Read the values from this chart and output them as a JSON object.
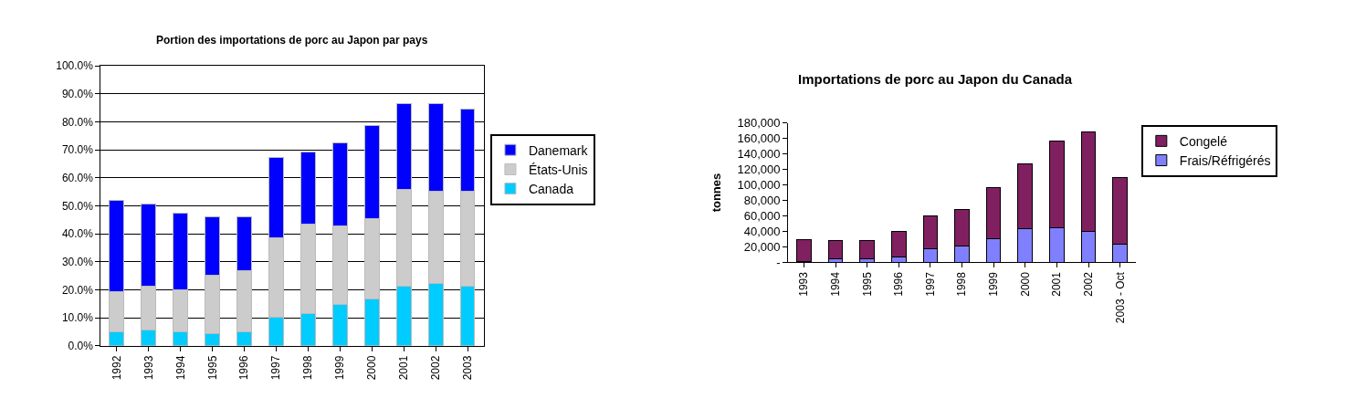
{
  "chart_data": [
    {
      "type": "bar",
      "stacked": true,
      "title": "Portion des importations de porc au Japon par pays",
      "categories": [
        "1992",
        "1993",
        "1994",
        "1995",
        "1996",
        "1997",
        "1998",
        "1999",
        "2000",
        "2001",
        "2002",
        "2003"
      ],
      "series": [
        {
          "name": "Canada",
          "color": "#00ccff",
          "values": [
            5.1,
            5.8,
            5.1,
            4.5,
            5.1,
            10.3,
            11.5,
            14.7,
            16.7,
            21.2,
            22.4,
            21.2
          ]
        },
        {
          "name": "États-Unis",
          "color": "#cccccc",
          "values": [
            14.2,
            15.4,
            14.8,
            20.6,
            21.8,
            28.2,
            32.1,
            28.2,
            28.8,
            34.6,
            32.7,
            33.9
          ]
        },
        {
          "name": "Danemark",
          "color": "#0000ff",
          "values": [
            32.6,
            29.4,
            27.5,
            21.1,
            19.3,
            28.8,
            25.6,
            29.5,
            33.3,
            30.7,
            31.4,
            29.5
          ]
        }
      ],
      "ylim": [
        0,
        100
      ],
      "yticks": [
        {
          "value": 0,
          "label": "0.0%"
        },
        {
          "value": 10,
          "label": "10.0%"
        },
        {
          "value": 20,
          "label": "20.0%"
        },
        {
          "value": 30,
          "label": "30.0%"
        },
        {
          "value": 40,
          "label": "40.0%"
        },
        {
          "value": 50,
          "label": "50.0%"
        },
        {
          "value": 60,
          "label": "60.0%"
        },
        {
          "value": 70,
          "label": "70.0%"
        },
        {
          "value": 80,
          "label": "80.0%"
        },
        {
          "value": 90,
          "label": "90.0%"
        },
        {
          "value": 100,
          "label": "100.0%"
        }
      ],
      "grid": "y",
      "legend": "right"
    },
    {
      "type": "bar",
      "stacked": true,
      "title": "Importations de porc au Japon du Canada",
      "ylabel": "tonnes",
      "categories": [
        "1993",
        "1994",
        "1995",
        "1996",
        "1997",
        "1998",
        "1999",
        "2000",
        "2001",
        "2002",
        "2003 - Oct"
      ],
      "series": [
        {
          "name": "Frais/Réfrigérés",
          "color": "#8080ff",
          "values": [
            1000,
            4000,
            4000,
            7000,
            18000,
            21000,
            31000,
            43000,
            45000,
            40000,
            23000
          ]
        },
        {
          "name": "Congelé",
          "color": "#802060",
          "values": [
            28000,
            24000,
            24000,
            33000,
            42000,
            47000,
            65000,
            84000,
            112000,
            128000,
            87000
          ]
        }
      ],
      "ylim": [
        0,
        180000
      ],
      "yticks": [
        {
          "value": 0,
          "label": "-"
        },
        {
          "value": 20000,
          "label": "20,000"
        },
        {
          "value": 40000,
          "label": "40,000"
        },
        {
          "value": 60000,
          "label": "60,000"
        },
        {
          "value": 80000,
          "label": "80,000"
        },
        {
          "value": 100000,
          "label": "100,000"
        },
        {
          "value": 120000,
          "label": "120,000"
        },
        {
          "value": 140000,
          "label": "140,000"
        },
        {
          "value": 160000,
          "label": "160,000"
        },
        {
          "value": 180000,
          "label": "180,000"
        }
      ],
      "grid": false,
      "legend": "right"
    }
  ]
}
